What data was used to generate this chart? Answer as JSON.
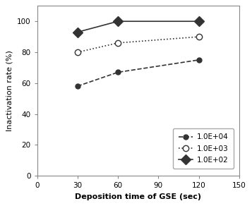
{
  "x": [
    30,
    60,
    120
  ],
  "series": [
    {
      "label": "1.0E+04",
      "y": [
        58,
        67,
        75
      ],
      "linestyle": "--",
      "marker": "o",
      "markersize": 5,
      "color": "#333333",
      "markerfacecolor": "#333333",
      "linewidth": 1.2
    },
    {
      "label": "1.0E+03",
      "y": [
        80,
        86,
        90
      ],
      "linestyle": ":",
      "marker": "o",
      "markersize": 6,
      "color": "#333333",
      "markerfacecolor": "white",
      "linewidth": 1.2
    },
    {
      "label": "1.0E+02",
      "y": [
        93,
        100,
        100
      ],
      "linestyle": "-",
      "marker": "D",
      "markersize": 7,
      "color": "#333333",
      "markerfacecolor": "#333333",
      "linewidth": 1.2
    }
  ],
  "xlabel": "Deposition time of GSE (sec)",
  "ylabel": "Inactivation rate (%)",
  "xlim": [
    0,
    150
  ],
  "ylim": [
    0,
    110
  ],
  "xticks": [
    0,
    30,
    60,
    90,
    120,
    150
  ],
  "yticks": [
    0,
    20,
    40,
    60,
    80,
    100
  ],
  "background_color": "#ffffff"
}
